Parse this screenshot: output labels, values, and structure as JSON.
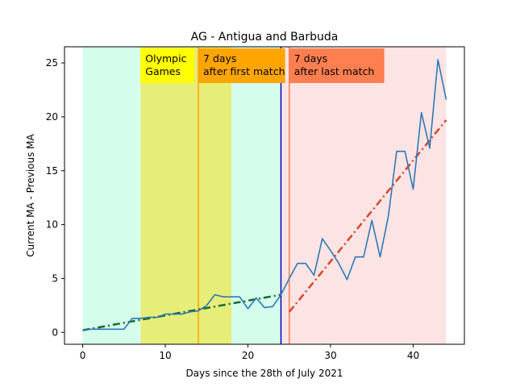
{
  "chart_data": {
    "type": "line",
    "title": "AG - Antigua and Barbuda",
    "xlabel": "Days since the 28th of July 2021",
    "ylabel": "Current MA - Previous MA",
    "xlim": [
      -2.2,
      46.2
    ],
    "ylim": [
      -1.1,
      26.5
    ],
    "xticks": [
      0,
      10,
      20,
      30,
      40
    ],
    "yticks": [
      0,
      5,
      10,
      15,
      20,
      25
    ],
    "regions": [
      {
        "x0": 0,
        "x1": 7,
        "color": "#d4fdec"
      },
      {
        "x0": 7,
        "x1": 18,
        "color": "#e6ed78"
      },
      {
        "x0": 18,
        "x1": 24,
        "color": "#d4fdec"
      },
      {
        "x0": 24,
        "x1": 44,
        "color": "#fde4e4"
      }
    ],
    "vlines": [
      {
        "x": 14,
        "color": "#ffa500"
      },
      {
        "x": 24,
        "color": "#0000cc"
      },
      {
        "x": 25,
        "color": "#ff7f50"
      }
    ],
    "annotations": [
      {
        "x": 7,
        "lines": [
          "Olympic",
          "Games"
        ],
        "bg": "#ffff00",
        "width": 6.5
      },
      {
        "x": 14,
        "lines": [
          "7 days",
          "after first match"
        ],
        "bg": "#ffa500",
        "width": 10.5
      },
      {
        "x": 25,
        "lines": [
          "7 days",
          "after last match"
        ],
        "bg": "#ff7f50",
        "width": 11.5
      }
    ],
    "series": [
      {
        "color": "#2f78b4",
        "x": [
          0,
          1,
          2,
          3,
          4,
          5,
          6,
          7,
          8,
          9,
          10,
          11,
          12,
          13,
          14,
          15,
          16,
          17,
          18,
          19,
          20,
          21,
          22,
          23,
          24,
          25,
          26,
          27,
          28,
          29,
          30,
          31,
          32,
          33,
          34,
          35,
          36,
          37,
          38,
          39,
          40,
          41,
          42,
          43,
          44
        ],
        "values": [
          0.2,
          0.3,
          0.3,
          0.3,
          0.3,
          0.3,
          1.3,
          1.3,
          1.4,
          1.4,
          1.7,
          1.7,
          1.7,
          1.9,
          2.0,
          2.5,
          3.5,
          3.3,
          3.3,
          3.3,
          2.2,
          3.2,
          2.3,
          2.4,
          3.5,
          5.0,
          6.4,
          6.4,
          5.3,
          8.7,
          7.6,
          6.4,
          4.9,
          7.0,
          7.0,
          10.4,
          7.0,
          10.8,
          16.8,
          16.8,
          13.3,
          20.4,
          17.1,
          25.3,
          21.6
        ]
      }
    ],
    "trendlines": [
      {
        "x": [
          0,
          24
        ],
        "values": [
          0.2,
          3.5
        ],
        "color": "#1a6b2a"
      },
      {
        "x": [
          25,
          44
        ],
        "values": [
          1.9,
          19.7
        ],
        "color": "#d84628"
      }
    ]
  }
}
